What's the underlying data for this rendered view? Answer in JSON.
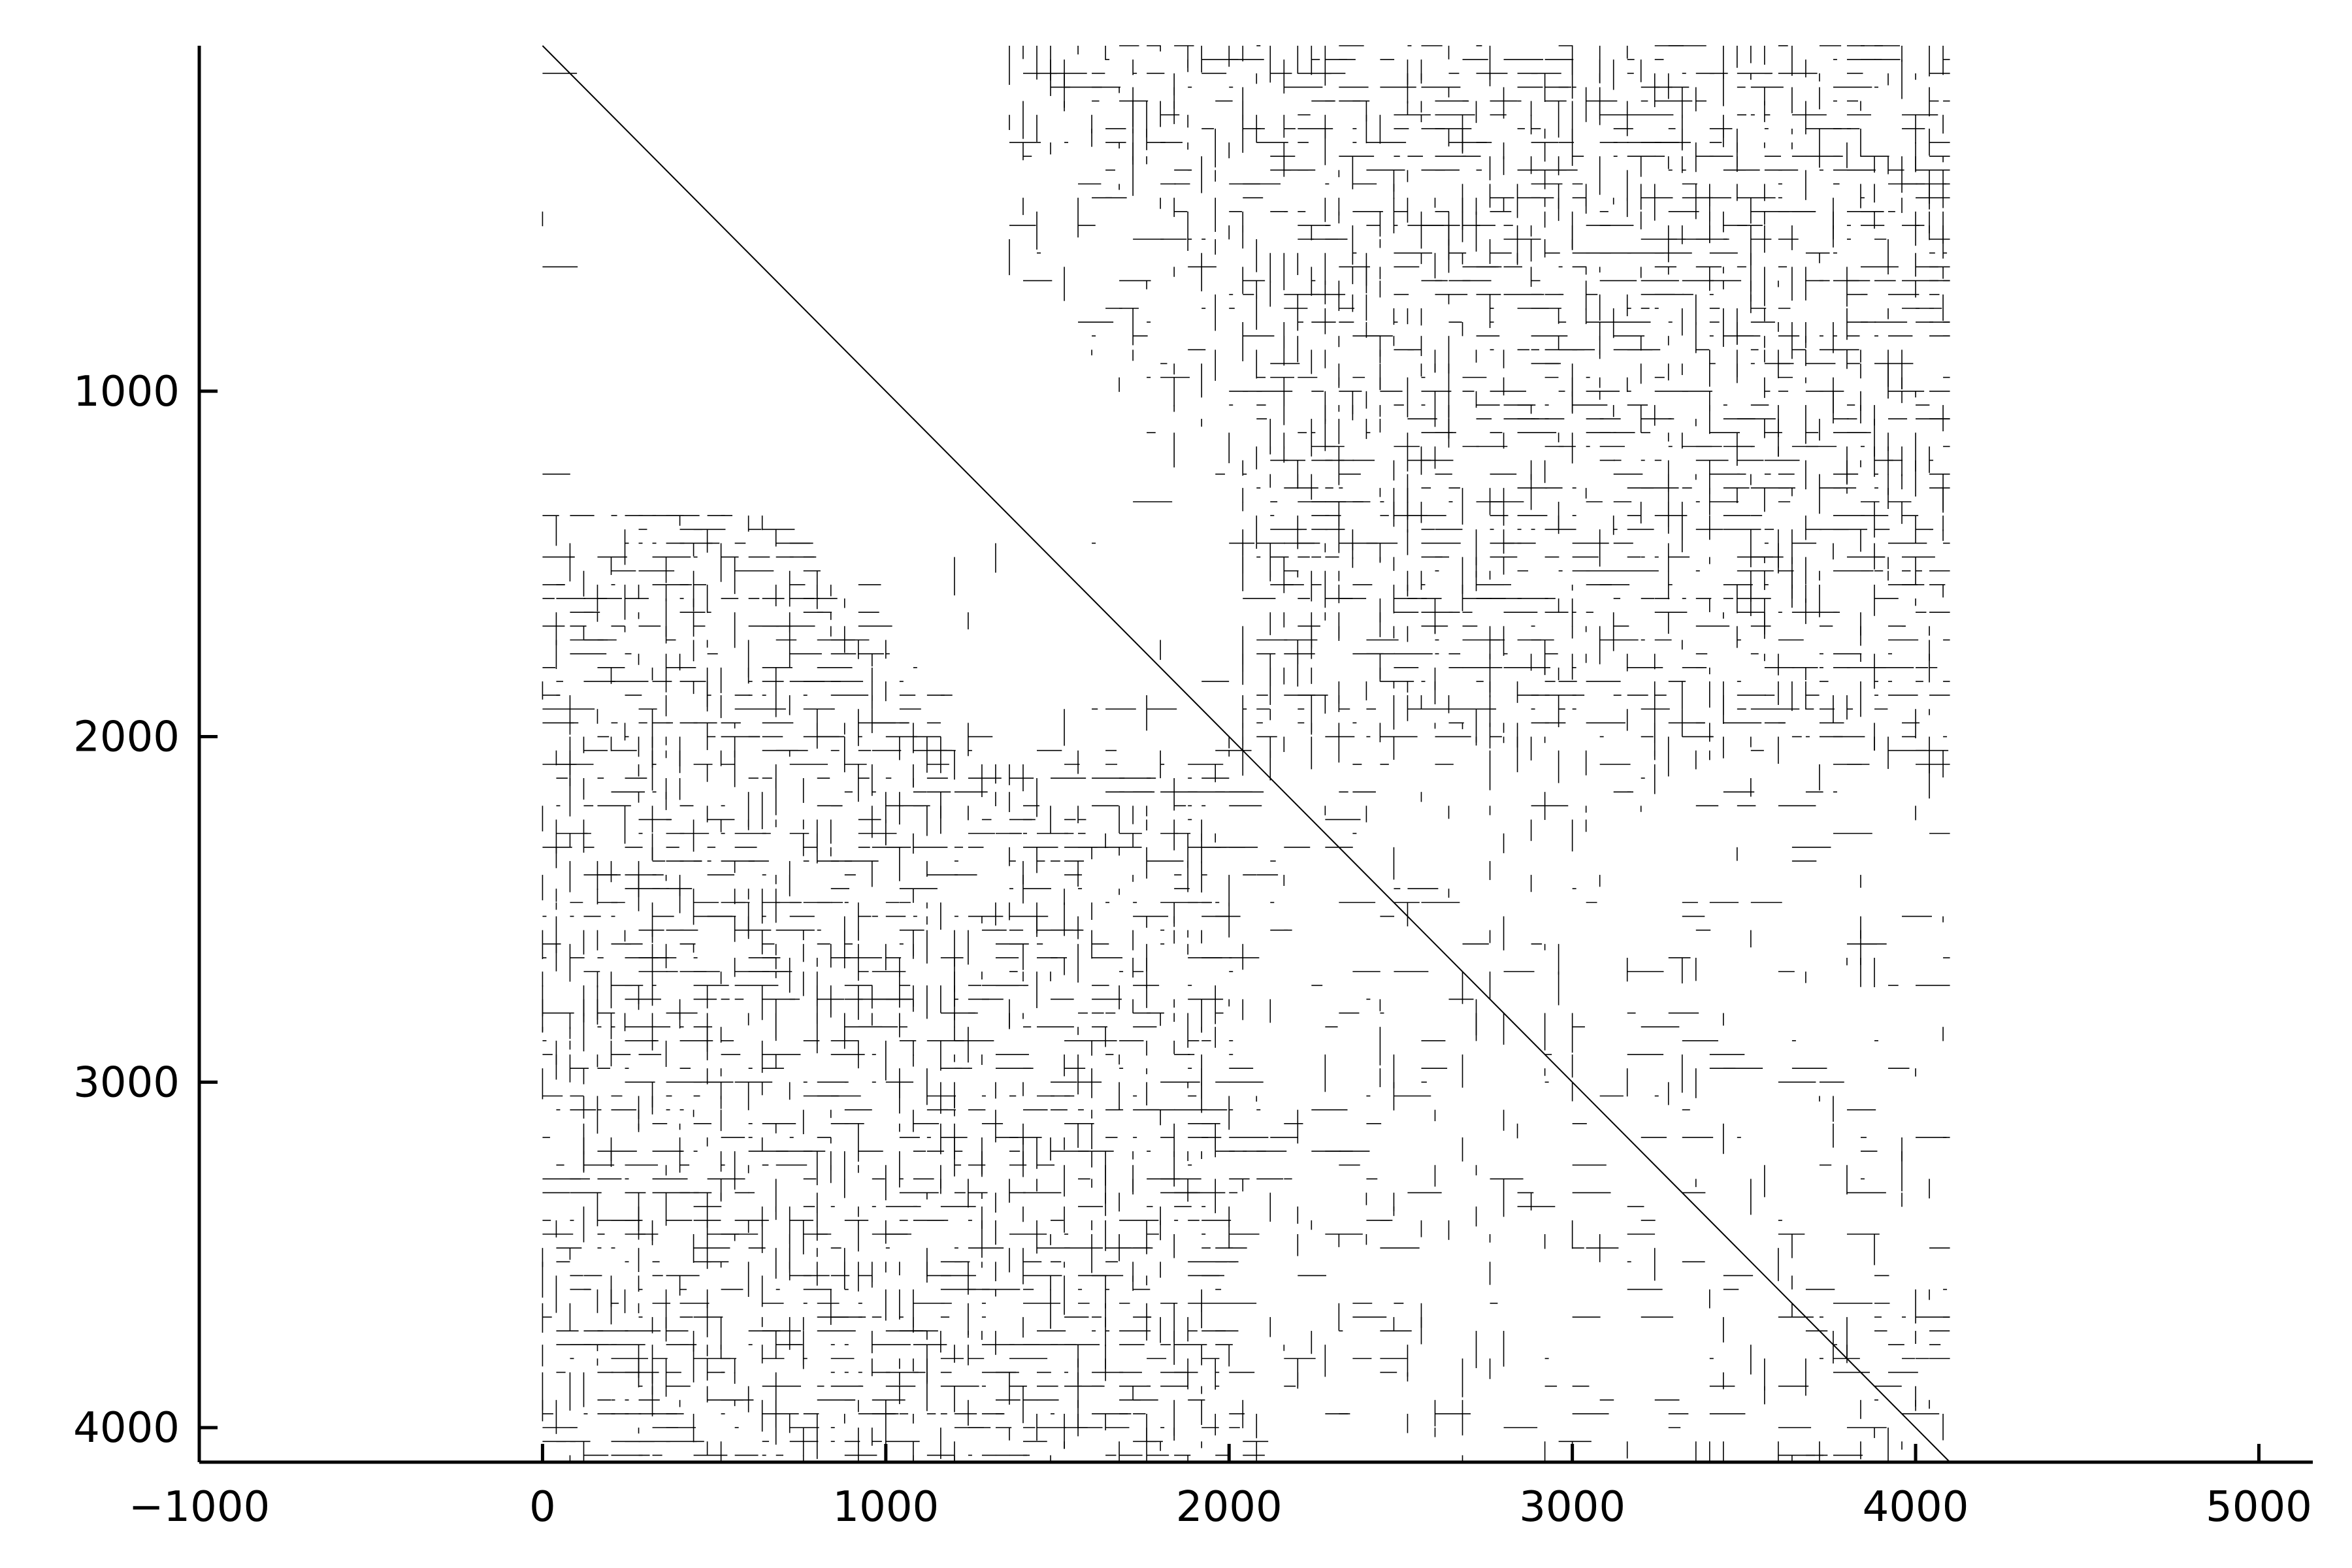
{
  "chart_data": {
    "type": "heatmap",
    "description_kind": "sparsity pattern (spy plot) of a square sparse matrix",
    "title": "",
    "xlabel": "",
    "ylabel": "",
    "matrix_size": [
      4100,
      4100
    ],
    "xlim": [
      -1000,
      5100
    ],
    "ylim": [
      4100,
      0
    ],
    "y_axis_inverted": true,
    "grid": false,
    "legend": "none",
    "x_ticks": [
      -1000,
      0,
      1000,
      2000,
      3000,
      4000,
      5000
    ],
    "x_tick_labels": [
      "−1000",
      "0",
      "1000",
      "2000",
      "3000",
      "4000",
      "5000"
    ],
    "y_ticks": [
      1000,
      2000,
      3000,
      4000
    ],
    "y_tick_labels": [
      "1000",
      "2000",
      "3000",
      "4000"
    ],
    "diagonal": {
      "from": [
        0,
        0
      ],
      "to": [
        4100,
        4100
      ]
    },
    "sparse_corners": [
      {
        "rows": [
          0,
          1350
        ],
        "cols": [
          0,
          1350
        ],
        "note": "upper-left block nearly empty"
      },
      {
        "rows": [
          3600,
          4100
        ],
        "cols": [
          3600,
          4100
        ],
        "note": "lower-right block with sparse entries"
      }
    ],
    "dense_regions": [
      {
        "rows": [
          0,
          2050
        ],
        "cols": [
          1350,
          4100
        ]
      },
      {
        "rows": [
          1350,
          4100
        ],
        "cols": [
          0,
          2050
        ]
      }
    ],
    "colors": {
      "marks": "#000000",
      "background": "#ffffff",
      "axis": "#000000"
    }
  }
}
